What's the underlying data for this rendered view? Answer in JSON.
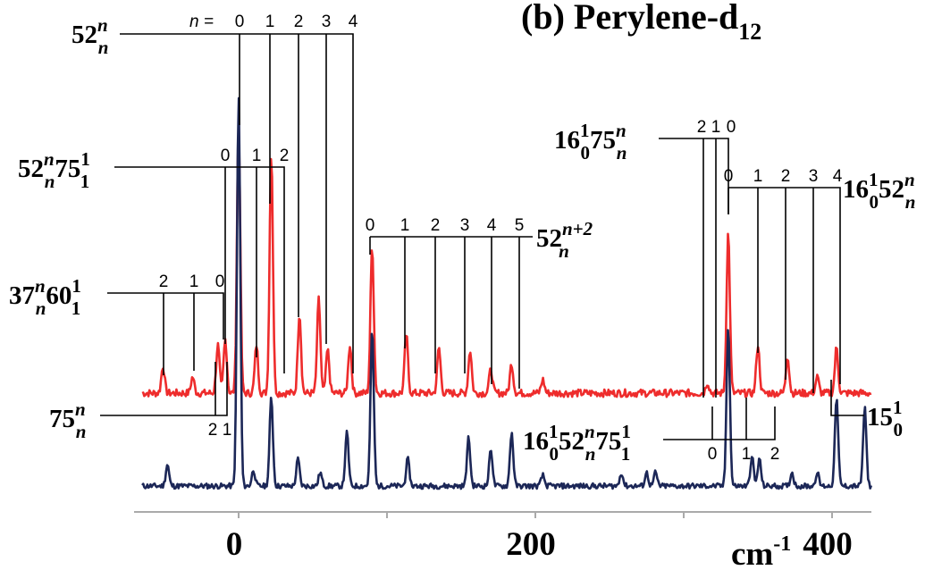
{
  "colors": {
    "upper_trace": "#ee2c2c",
    "lower_trace": "#1c2757",
    "axis": "#aaaaaa",
    "ladder": "#000000"
  },
  "chart_data": {
    "type": "line",
    "title": "(b) Perylene-d",
    "title_sub": "12",
    "xlabel": "cm",
    "xlabel_sup": "-1",
    "xlim": [
      -68,
      430
    ],
    "x_ticks": [
      0,
      200,
      400
    ],
    "minor_ticks": [
      100,
      300
    ],
    "series": [
      {
        "key": "upper",
        "color": "#ee2c2c",
        "baseline": 0.085,
        "noise": 0.028,
        "seed": 7,
        "peaks": [
          [
            -51,
            0.1
          ],
          [
            -31,
            0.06
          ],
          [
            -14,
            0.18
          ],
          [
            -9,
            0.2
          ],
          [
            0,
            1.0
          ],
          [
            12,
            0.18
          ],
          [
            22,
            0.9
          ],
          [
            41,
            0.3
          ],
          [
            54,
            0.35
          ],
          [
            60,
            0.16
          ],
          [
            75,
            0.18
          ],
          [
            90,
            0.55
          ],
          [
            113,
            0.22
          ],
          [
            135,
            0.17
          ],
          [
            156,
            0.16
          ],
          [
            170,
            0.09
          ],
          [
            184,
            0.11
          ],
          [
            205,
            0.05
          ],
          [
            316,
            0.04
          ],
          [
            330,
            0.6
          ],
          [
            350,
            0.18
          ],
          [
            370,
            0.14
          ],
          [
            390,
            0.06
          ],
          [
            403,
            0.17
          ]
        ]
      },
      {
        "key": "lower",
        "color": "#1c2757",
        "baseline": 0.0,
        "noise": 0.02,
        "seed": 11,
        "peaks": [
          [
            -48,
            0.08
          ],
          [
            0,
            1.45
          ],
          [
            10,
            0.06
          ],
          [
            22,
            0.33
          ],
          [
            40,
            0.1
          ],
          [
            55,
            0.05
          ],
          [
            73,
            0.2
          ],
          [
            90,
            0.58
          ],
          [
            114,
            0.1
          ],
          [
            155,
            0.18
          ],
          [
            170,
            0.14
          ],
          [
            184,
            0.2
          ],
          [
            205,
            0.04
          ],
          [
            258,
            0.05
          ],
          [
            275,
            0.05
          ],
          [
            281,
            0.05
          ],
          [
            330,
            0.6
          ],
          [
            346,
            0.11
          ],
          [
            351,
            0.1
          ],
          [
            373,
            0.05
          ],
          [
            390,
            0.05
          ],
          [
            403,
            0.33
          ],
          [
            422,
            0.29
          ]
        ]
      }
    ]
  },
  "labels": {
    "52n": {
      "base": "52",
      "sup": "n",
      "sub": "n"
    },
    "52n75": {
      "b1": "52",
      "s1": "n",
      "u1": "n",
      "b2": "75",
      "s2": "1",
      "u2": "1"
    },
    "37n60": {
      "b1": "37",
      "s1": "n",
      "u1": "n",
      "b2": "60",
      "s2": "1",
      "u2": "1"
    },
    "75n": {
      "base": "75",
      "sup": "n",
      "sub": "n"
    },
    "52nn2": {
      "base": "52",
      "sup": "n+2",
      "sub": "n"
    },
    "16_75": {
      "b1": "16",
      "s1": "1",
      "u1": "0",
      "b2": "75",
      "s2": "n",
      "u2": "n"
    },
    "16_52": {
      "b1": "16",
      "s1": "1",
      "u1": "0",
      "b2": "52",
      "s2": "n",
      "u2": "n"
    },
    "16_52_75": {
      "b1": "16",
      "s1": "1",
      "u1": "0",
      "b2": "52",
      "s2": "n",
      "u2": "n",
      "b3": "75",
      "s3": "1",
      "u3": "1"
    },
    "15": {
      "base": "15",
      "sup": "1",
      "sub": "0"
    },
    "n_equals": "n ="
  },
  "ladders": {
    "l52": [
      "0",
      "1",
      "2",
      "3",
      "4"
    ],
    "l5275": [
      "0",
      "1",
      "2"
    ],
    "l3760": [
      "2",
      "1",
      "0"
    ],
    "l75": [
      "2",
      "1"
    ],
    "l52n2": [
      "0",
      "1",
      "2",
      "3",
      "4",
      "5"
    ],
    "l1675": [
      "2",
      "1",
      "0"
    ],
    "l1652": [
      "0",
      "1",
      "2",
      "3",
      "4"
    ],
    "l165275": [
      "0",
      "1",
      "2"
    ]
  }
}
